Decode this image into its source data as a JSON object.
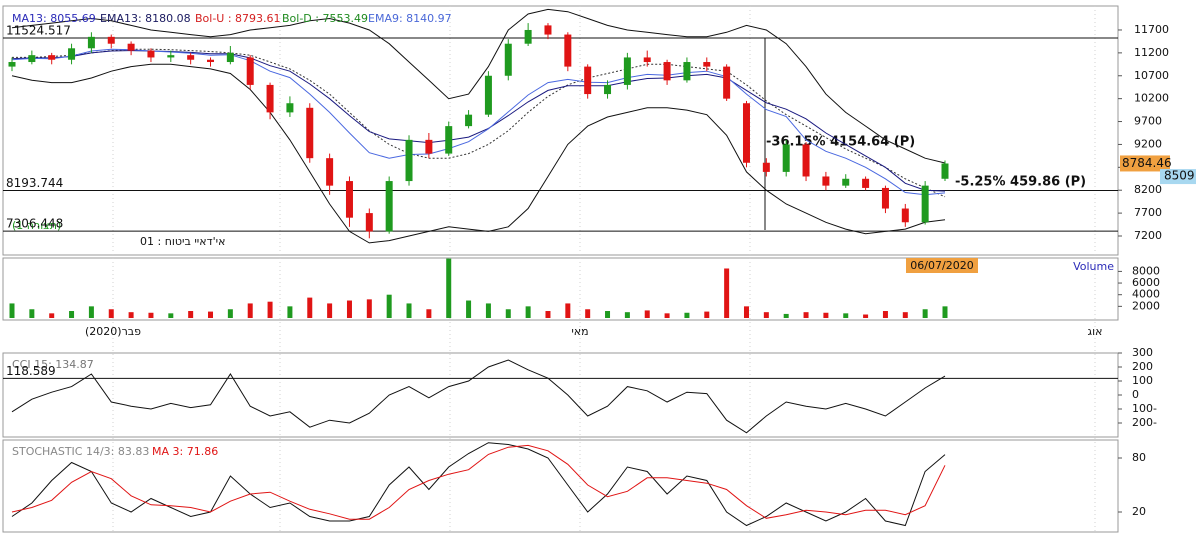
{
  "chart_data": [
    {
      "type": "candlestick",
      "title": "אי'דאיי ביטוח : 01",
      "subtitle": "(תצורה 1)",
      "x_axis_labels": [
        "פבר(2020)",
        "מאי",
        "אוג"
      ],
      "up_color": "#1f9a1f",
      "down_color": "#e01414",
      "open": [
        10900,
        11000,
        11150,
        11050,
        11300,
        11550,
        11400,
        11250,
        11100,
        11150,
        11050,
        11000,
        11100,
        10500,
        9900,
        10000,
        8900,
        8400,
        7700,
        7300,
        8400,
        9300,
        9000,
        9600,
        9850,
        10700,
        11400,
        11800,
        11600,
        10900,
        10300,
        10500,
        11100,
        11000,
        10600,
        11000,
        10900,
        10100,
        8800,
        8600,
        9200,
        8500,
        8300,
        8450,
        8250,
        7800,
        7500,
        8450
      ],
      "high": [
        11100,
        11250,
        11200,
        11400,
        11650,
        11600,
        11450,
        11300,
        11250,
        11200,
        11100,
        11350,
        11150,
        10550,
        10250,
        10100,
        9000,
        8500,
        7800,
        8500,
        9400,
        9450,
        9700,
        9950,
        10800,
        11500,
        11850,
        11850,
        11650,
        10950,
        10600,
        11200,
        11250,
        11050,
        11100,
        11100,
        10950,
        10150,
        8900,
        9300,
        9250,
        8600,
        8550,
        8500,
        8300,
        7900,
        8400,
        8850
      ],
      "low": [
        10800,
        10950,
        10950,
        10950,
        11200,
        11300,
        11150,
        11000,
        11000,
        10950,
        10900,
        10950,
        10400,
        9750,
        9800,
        8800,
        8100,
        7400,
        7150,
        7250,
        8300,
        8900,
        8950,
        9550,
        9800,
        10600,
        11350,
        11500,
        10800,
        10200,
        10200,
        10400,
        10900,
        10500,
        10550,
        10800,
        10150,
        8700,
        8500,
        8500,
        8400,
        8200,
        8250,
        8200,
        7700,
        7400,
        7450,
        8400
      ],
      "close": [
        11000,
        11150,
        11050,
        11300,
        11550,
        11400,
        11250,
        11100,
        11150,
        11050,
        11000,
        11200,
        10500,
        9900,
        10100,
        8900,
        8300,
        7600,
        7300,
        8400,
        9300,
        9000,
        9600,
        9850,
        10700,
        11400,
        11700,
        11600,
        10900,
        10300,
        10500,
        11100,
        11000,
        10600,
        11000,
        10900,
        10200,
        8800,
        8600,
        9200,
        8500,
        8300,
        8450,
        8250,
        7800,
        7500,
        8300,
        8784
      ],
      "series": [
        {
          "name": "MA13: 8055.69",
          "color": "#2b2bb8",
          "line_color": "#333333",
          "dashed": true,
          "values": [
            11100,
            11100,
            11120,
            11150,
            11200,
            11250,
            11280,
            11280,
            11270,
            11250,
            11230,
            11200,
            11150,
            11000,
            10850,
            10600,
            10300,
            9900,
            9500,
            9200,
            9000,
            8900,
            8900,
            9000,
            9200,
            9500,
            9900,
            10250,
            10500,
            10650,
            10750,
            10850,
            10950,
            10950,
            10900,
            10850,
            10800,
            10500,
            10150,
            9850,
            9600,
            9350,
            9100,
            8900,
            8700,
            8450,
            8250,
            8055.69
          ]
        },
        {
          "name": "EMA13: 8180.08",
          "color": "#1a1a60",
          "line_color": "#1a1a80",
          "dashed": false,
          "values": [
            11070,
            11090,
            11090,
            11120,
            11200,
            11240,
            11250,
            11240,
            11230,
            11210,
            11180,
            11180,
            11090,
            10920,
            10800,
            10520,
            10200,
            9830,
            9480,
            9320,
            9280,
            9240,
            9290,
            9360,
            9550,
            9830,
            10130,
            10380,
            10480,
            10480,
            10480,
            10570,
            10640,
            10650,
            10700,
            10730,
            10650,
            10380,
            10110,
            9970,
            9760,
            9450,
            9200,
            8950,
            8700,
            8350,
            8200,
            8180.08
          ]
        },
        {
          "name": "Bol-U : 8793.61",
          "color": "#d42020",
          "line_color": "#111111",
          "dashed": false,
          "values": [
            11750,
            11800,
            11850,
            11900,
            11950,
            11900,
            11800,
            11700,
            11650,
            11600,
            11550,
            11600,
            11700,
            11750,
            11800,
            11900,
            11950,
            11850,
            11700,
            11400,
            11000,
            10600,
            10200,
            10300,
            10900,
            11700,
            12050,
            12150,
            12100,
            11950,
            11800,
            11700,
            11650,
            11600,
            11550,
            11550,
            11650,
            11800,
            11700,
            11400,
            10900,
            10300,
            9900,
            9600,
            9300,
            9100,
            8900,
            8793.61
          ]
        },
        {
          "name": "Bol-D : 7553.49",
          "color": "#1f8a1f",
          "line_color": "#111111",
          "dashed": false,
          "values": [
            10700,
            10600,
            10550,
            10550,
            10650,
            10800,
            10900,
            10950,
            10950,
            10900,
            10850,
            10750,
            10400,
            9900,
            9300,
            8600,
            7900,
            7300,
            7050,
            7100,
            7200,
            7300,
            7400,
            7350,
            7300,
            7400,
            7800,
            8500,
            9200,
            9600,
            9800,
            9900,
            10000,
            10000,
            9950,
            9850,
            9400,
            8600,
            8200,
            7900,
            7700,
            7500,
            7350,
            7250,
            7300,
            7350,
            7500,
            7553.49
          ]
        },
        {
          "name": "EMA9: 8140.97",
          "color": "#4a68d8",
          "line_color": "#4a68e0",
          "dashed": false,
          "values": [
            11050,
            11080,
            11070,
            11130,
            11240,
            11280,
            11270,
            11240,
            11220,
            11190,
            11150,
            11160,
            11030,
            10800,
            10660,
            10300,
            9900,
            9450,
            9020,
            8900,
            8980,
            8990,
            9110,
            9260,
            9540,
            9910,
            10280,
            10550,
            10620,
            10560,
            10550,
            10660,
            10730,
            10710,
            10770,
            10800,
            10680,
            10300,
            9960,
            9810,
            9300,
            9050,
            8900,
            8700,
            8450,
            8150,
            8100,
            8140.97
          ]
        }
      ],
      "ylim": [
        6785,
        12180
      ],
      "yticks": [
        7200,
        7700,
        8200,
        8700,
        9200,
        9700,
        10200,
        10700,
        11200,
        11700
      ],
      "hlines": [
        11524.517,
        8193.744,
        7306.448
      ],
      "annotations": [
        "-36.15% 4154.64 (P)",
        "-5.25% 459.86 (P)"
      ],
      "last_price": 8784.46,
      "marker_price": 8509,
      "date_label": "06/07/2020"
    },
    {
      "type": "bar",
      "title": "Volume",
      "values": [
        2500,
        1500,
        800,
        1200,
        2000,
        1500,
        1000,
        900,
        800,
        1200,
        1100,
        1500,
        2500,
        2800,
        2000,
        3500,
        2500,
        3000,
        3200,
        4000,
        2500,
        1500,
        10200,
        3000,
        2500,
        1500,
        2000,
        1200,
        2500,
        1500,
        1200,
        1000,
        1300,
        800,
        900,
        1100,
        8500,
        2000,
        1000,
        700,
        1000,
        900,
        800,
        600,
        1200,
        1000,
        1500,
        2000
      ],
      "ylim": [
        0,
        10300
      ],
      "yticks": [
        2000,
        4000,
        6000,
        8000
      ]
    },
    {
      "type": "line",
      "title": "CCI 15: 134.87",
      "series": [
        {
          "name": "CCI 15",
          "color": "#111111",
          "values": [
            -120,
            -30,
            20,
            60,
            150,
            -50,
            -80,
            -100,
            -60,
            -90,
            -70,
            150,
            -80,
            -150,
            -120,
            -230,
            -180,
            -200,
            -130,
            0,
            60,
            -20,
            60,
            100,
            200,
            250,
            180,
            120,
            0,
            -150,
            -80,
            60,
            30,
            -50,
            20,
            10,
            -180,
            -270,
            -150,
            -50,
            -80,
            -100,
            -60,
            -100,
            -150,
            -50,
            50,
            134.87
          ]
        }
      ],
      "ylim": [
        -300,
        300
      ],
      "yticks": [
        300,
        200,
        100,
        0,
        {
          "value": -100,
          "label": "100-"
        },
        {
          "value": -200,
          "label": "200-"
        }
      ],
      "hlines": [
        118.589
      ]
    },
    {
      "type": "line",
      "series": [
        {
          "name": "STOCHASTIC 14/3: 83.83",
          "color": "#888888",
          "line_color": "#111111",
          "values": [
            15,
            30,
            55,
            75,
            65,
            30,
            20,
            35,
            25,
            15,
            20,
            60,
            40,
            25,
            30,
            15,
            10,
            10,
            15,
            50,
            70,
            45,
            70,
            85,
            97,
            95,
            90,
            80,
            50,
            20,
            40,
            70,
            65,
            40,
            60,
            55,
            20,
            5,
            15,
            30,
            20,
            10,
            20,
            35,
            10,
            5,
            65,
            83.83
          ]
        },
        {
          "name": "MA 3: 71.86",
          "color": "#e01414",
          "line_color": "#e01414",
          "values": [
            20,
            25,
            33,
            53,
            65,
            57,
            38,
            28,
            27,
            25,
            20,
            32,
            40,
            42,
            32,
            23,
            18,
            12,
            12,
            25,
            45,
            55,
            62,
            67,
            84,
            92,
            94,
            88,
            73,
            50,
            37,
            43,
            58,
            58,
            55,
            52,
            45,
            27,
            13,
            17,
            22,
            20,
            17,
            22,
            22,
            17,
            27,
            71.86
          ]
        }
      ],
      "ylim": [
        0,
        100
      ],
      "yticks": [
        80,
        20
      ]
    }
  ]
}
